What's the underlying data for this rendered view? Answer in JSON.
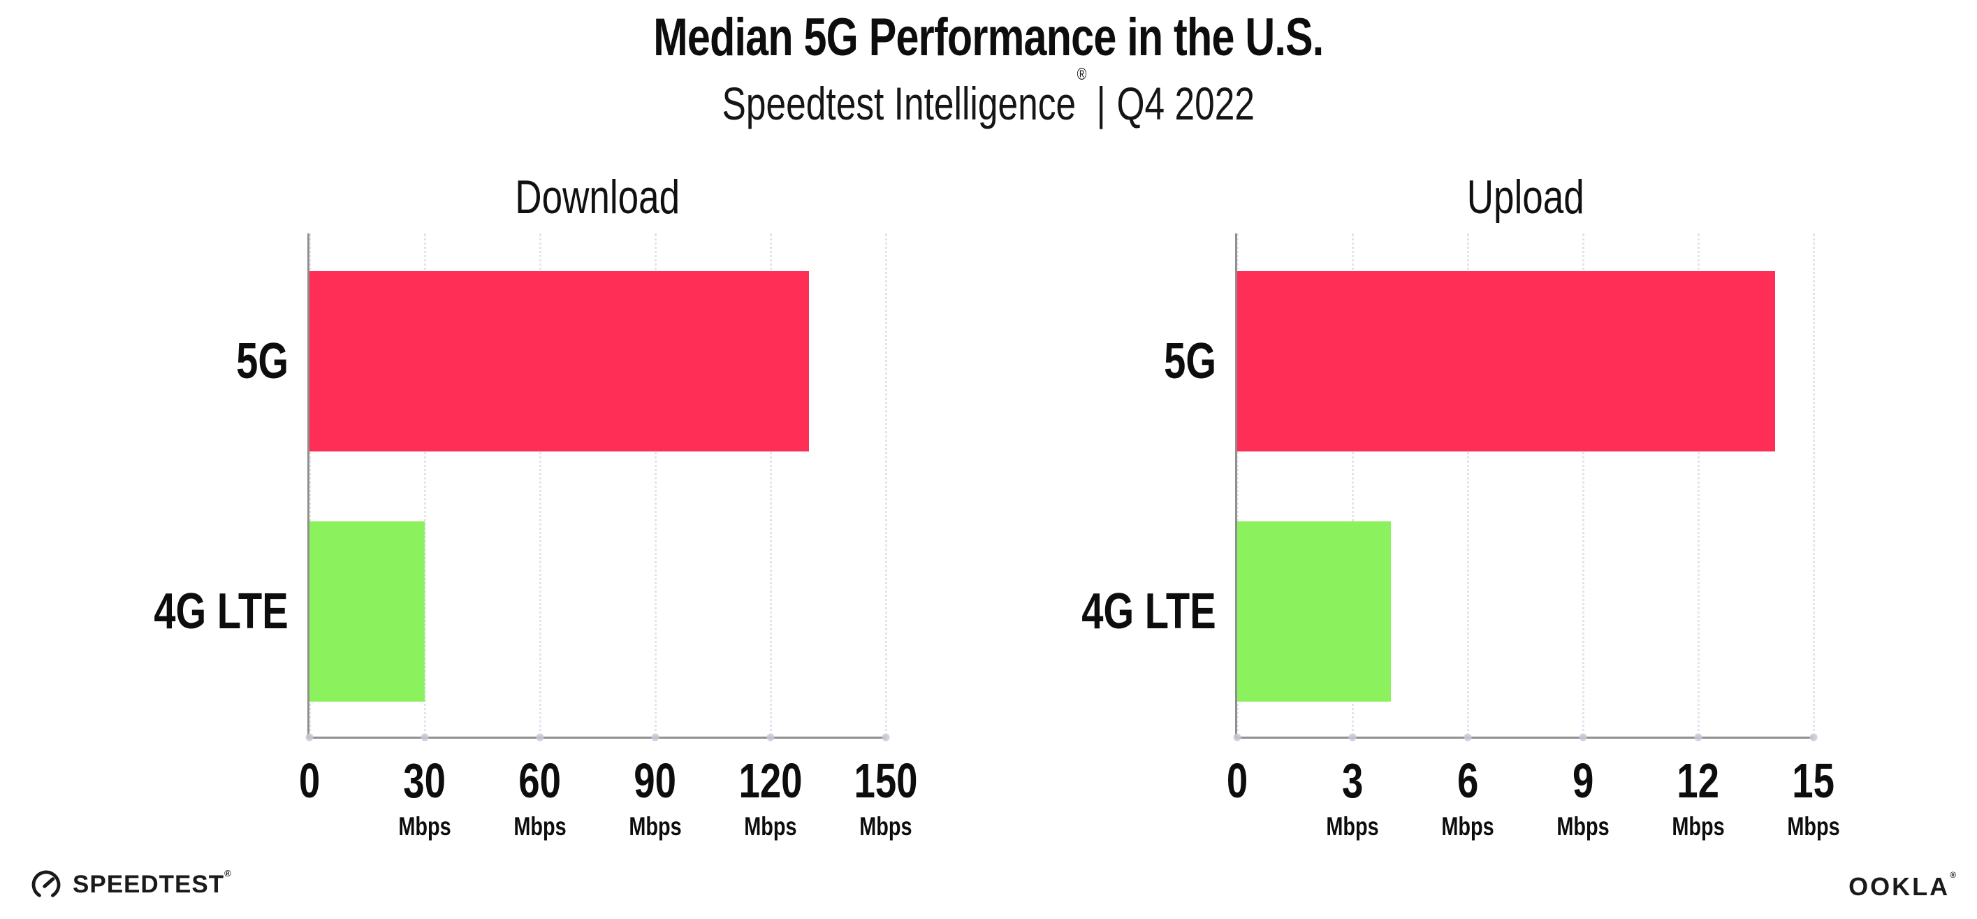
{
  "header": {
    "title": "Median 5G Performance in the U.S.",
    "subtitle_brand": "Speedtest Intelligence",
    "subtitle_reg": "®",
    "subtitle_sep": "|",
    "subtitle_period": "Q4 2022"
  },
  "chart_data": [
    {
      "type": "bar",
      "orientation": "horizontal",
      "title": "Download",
      "categories": [
        "5G",
        "4G LTE"
      ],
      "values": [
        130,
        30
      ],
      "unit": "Mbps",
      "xlim": [
        0,
        150
      ],
      "xticks": [
        0,
        30,
        60,
        90,
        120,
        150
      ],
      "bar_colors": [
        "#FF2E56",
        "#8BF25E"
      ],
      "grid": "vertical-dotted",
      "legend": "none"
    },
    {
      "type": "bar",
      "orientation": "horizontal",
      "title": "Upload",
      "categories": [
        "5G",
        "4G LTE"
      ],
      "values": [
        14,
        4
      ],
      "unit": "Mbps",
      "xlim": [
        0,
        15
      ],
      "xticks": [
        0,
        3,
        6,
        9,
        12,
        15
      ],
      "bar_colors": [
        "#FF2E56",
        "#8BF25E"
      ],
      "grid": "vertical-dotted",
      "legend": "none"
    }
  ],
  "colors": {
    "bar_5g": "#FF2E56",
    "bar_4g_lte": "#8BF25E",
    "gridline": "#E3E3ED",
    "axis": "#8F8F8F",
    "tick_dot": "#C9C9D8",
    "text": "#0D0D0D",
    "background": "#FFFFFF"
  },
  "footer": {
    "speedtest_icon": "speedtest-gauge-icon",
    "speedtest_label": "SPEEDTEST",
    "speedtest_mark": "®",
    "ookla_label": "OOKLA",
    "ookla_mark": "®"
  }
}
